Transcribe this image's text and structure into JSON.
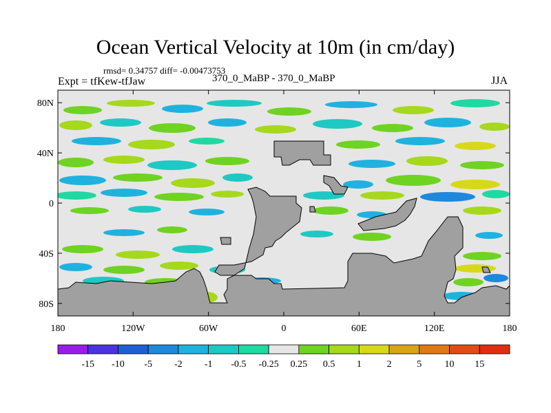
{
  "title": "Ocean Vertical Velocity at 10m (in cm/day)",
  "stats": "rmsd= 0.34757 diff= -0.00473753",
  "experiment": "Expt = tfKew-tfJaw",
  "case_label": "370_0_MaBP - 370_0_MaBP",
  "season": "JJA",
  "colors": {
    "land": "#a0a0a0",
    "near_zero": "#e6e6e6"
  },
  "map": {
    "projection": "cylindrical equidistant",
    "lon_range": [
      -180,
      180
    ],
    "lat_range": [
      -90,
      90
    ],
    "lon_ticks": [
      "180",
      "120W",
      "60W",
      "0",
      "60E",
      "120E",
      "180"
    ],
    "lat_ticks": [
      "80N",
      "40N",
      "0",
      "40S",
      "80S"
    ]
  },
  "colorbar": {
    "labels": [
      "-15",
      "-10",
      "-5",
      "-2",
      "-1",
      "-0.5",
      "-0.25",
      "0.25",
      "0.5",
      "1",
      "2",
      "5",
      "10",
      "15"
    ],
    "colors": [
      "#9a1de6",
      "#4b33e0",
      "#1f5fd6",
      "#1d88dd",
      "#1fb2df",
      "#1ec9c3",
      "#1ed9a2",
      "#e6e6e6",
      "#6fd321",
      "#a6d81c",
      "#d8d81a",
      "#d8a518",
      "#e07816",
      "#e04d14",
      "#e02e10"
    ]
  }
}
